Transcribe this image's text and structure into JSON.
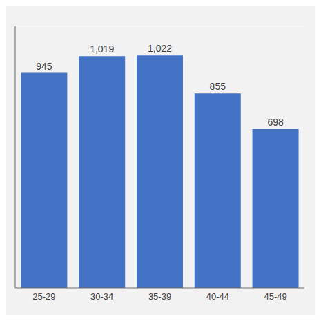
{
  "chart_data": {
    "type": "bar",
    "categories": [
      "25-29",
      "30-34",
      "35-39",
      "40-44",
      "45-49"
    ],
    "values": [
      945,
      1019,
      1022,
      855,
      698
    ],
    "value_labels": [
      "945",
      "1,019",
      "1,022",
      "855",
      "698"
    ],
    "color": "#4472C4",
    "ylim": [
      0,
      1150
    ],
    "yticks": [
      0,
      200,
      400,
      600,
      800,
      1000
    ],
    "grid": true,
    "data_labels": true,
    "tick_labels": "x"
  }
}
